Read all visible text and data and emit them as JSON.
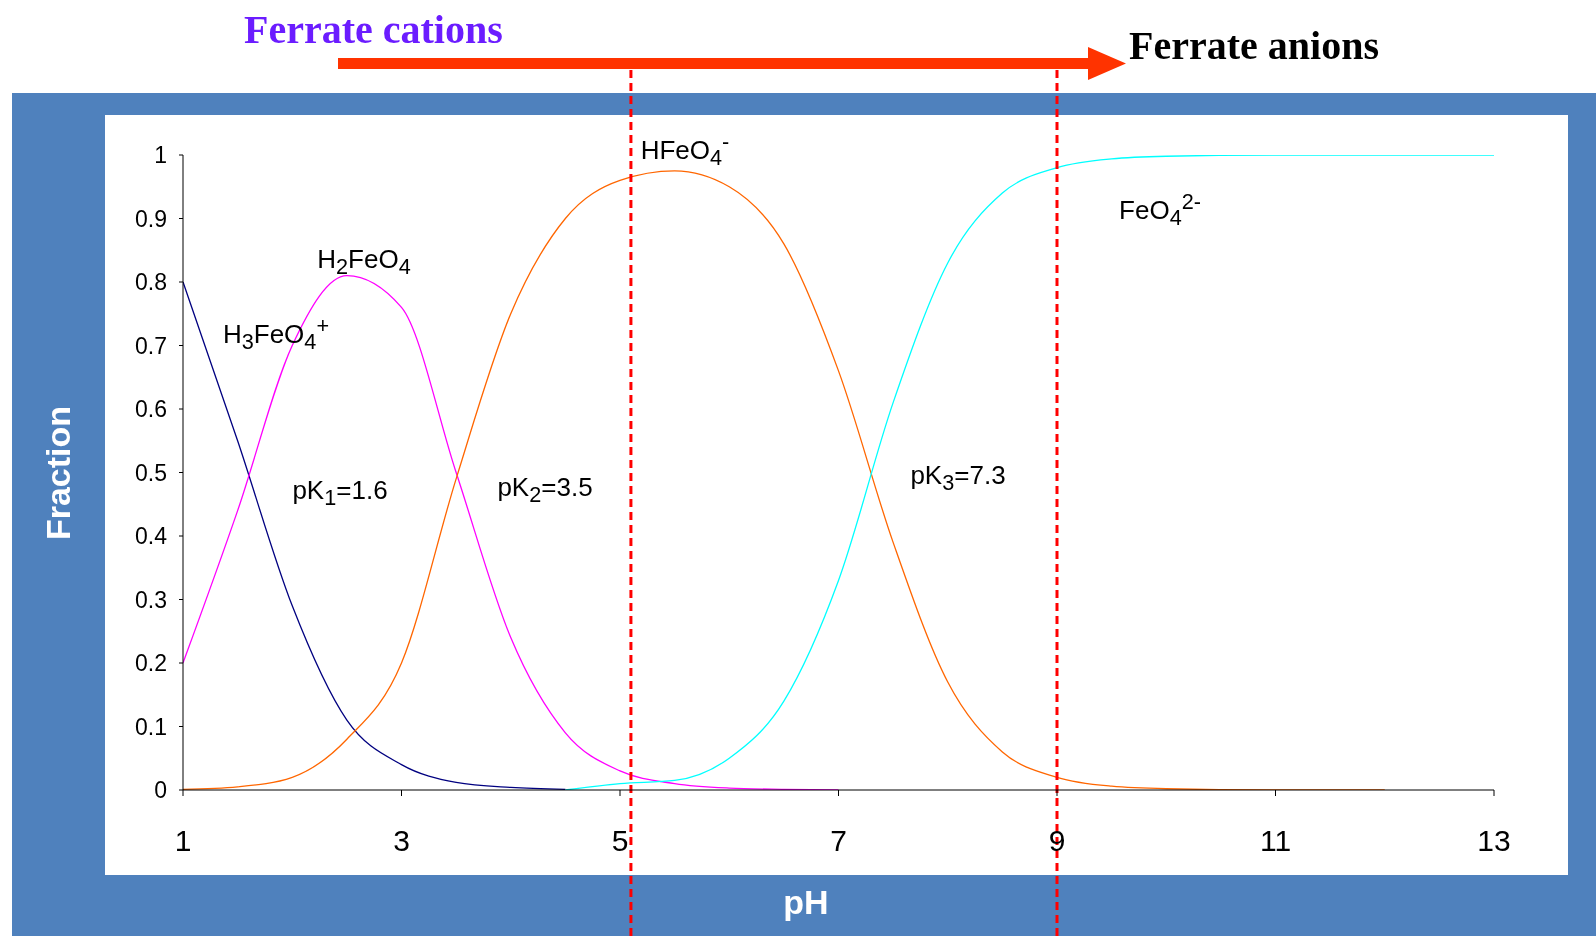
{
  "chart_data": {
    "type": "line",
    "xlabel": "pH",
    "ylabel": "Fraction",
    "x": [
      1,
      1.5,
      2,
      2.5,
      3,
      3.5,
      4,
      4.5,
      5,
      5.5,
      6,
      6.5,
      7,
      7.5,
      8,
      8.5,
      9,
      9.5,
      10,
      11,
      12,
      13
    ],
    "series": [
      {
        "color": "#000080",
        "values": [
          0.8,
          0.55,
          0.29,
          0.11,
          0.04,
          0.012,
          0.004,
          0.001,
          null,
          null,
          null,
          null,
          null,
          null,
          null,
          null,
          null,
          null,
          null,
          null,
          null,
          null
        ]
      },
      {
        "color": "#ff00ff",
        "values": [
          0.2,
          0.44,
          0.7,
          0.81,
          0.76,
          0.5,
          0.24,
          0.09,
          0.03,
          0.01,
          0.003,
          0.001,
          0,
          null,
          null,
          null,
          null,
          null,
          null,
          null,
          null,
          null
        ]
      },
      {
        "color": "#ff6600",
        "values": [
          0.001,
          0.005,
          0.02,
          0.08,
          0.2,
          0.49,
          0.75,
          0.9,
          0.96,
          0.975,
          0.95,
          0.86,
          0.66,
          0.39,
          0.17,
          0.06,
          0.02,
          0.006,
          0.002,
          0,
          0,
          null
        ]
      },
      {
        "color": "#00ffff",
        "values": [
          null,
          null,
          null,
          null,
          null,
          null,
          null,
          0,
          0.01,
          0.015,
          0.05,
          0.14,
          0.33,
          0.61,
          0.83,
          0.94,
          0.98,
          0.994,
          0.998,
          1,
          1,
          1
        ]
      }
    ],
    "xlim": [
      1,
      13
    ],
    "xticks": [
      1,
      3,
      5,
      7,
      9,
      11,
      13
    ],
    "ylim": [
      0,
      1
    ],
    "yticks": [
      0,
      0.1,
      0.2,
      0.3,
      0.4,
      0.5,
      0.6,
      0.7,
      0.8,
      0.9,
      1
    ],
    "ref_lines": [
      {
        "axis": "x",
        "value": 5.1,
        "color": "#ff0000",
        "line_style": "dashed"
      },
      {
        "axis": "x",
        "value": 9,
        "color": "#ff0000",
        "line_style": "dashed"
      }
    ],
    "annotations": [
      "Ferrate cations",
      "Ferrate anions",
      "H$_{3}$FeO$_{4}$$^{+}$",
      "H$_{2}$FeO$_{4}$",
      "HFeO$_{4}$$^{-}$",
      "FeO$_{4}$$^{2-}$",
      "pK$_{1}$=1.6",
      "pK$_{2}$=3.5",
      "pK$_{3}$=7.3"
    ],
    "grid": false,
    "legend": false,
    "marker": "none",
    "line_style": "solid"
  }
}
